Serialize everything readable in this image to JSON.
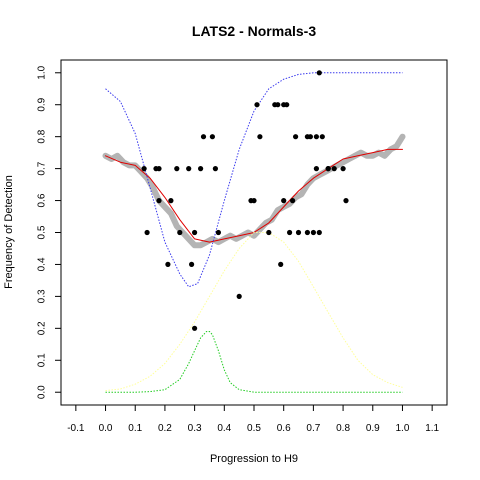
{
  "chart_data": {
    "type": "scatter",
    "title": "LATS2 - Normals-3",
    "xlabel": "Progression to H9",
    "ylabel": "Frequency of Detection",
    "xlim": [
      -0.15,
      1.15
    ],
    "ylim": [
      -0.04,
      1.04
    ],
    "x_ticks": [
      -0.1,
      0.0,
      0.1,
      0.2,
      0.3,
      0.4,
      0.5,
      0.6,
      0.7,
      0.8,
      0.9,
      1.0,
      1.1
    ],
    "x_tick_labels": [
      "-0.1",
      "0.0",
      "0.1",
      "0.2",
      "0.3",
      "0.4",
      "0.5",
      "0.6",
      "0.7",
      "0.8",
      "0.9",
      "1.0",
      "1.1"
    ],
    "y_ticks": [
      0.0,
      0.1,
      0.2,
      0.3,
      0.4,
      0.5,
      0.6,
      0.7,
      0.8,
      0.9,
      1.0
    ],
    "y_tick_labels": [
      "0.0",
      "0.1",
      "0.2",
      "0.3",
      "0.4",
      "0.5",
      "0.6",
      "0.7",
      "0.8",
      "0.9",
      "1.0"
    ],
    "grid": false,
    "points": {
      "color": "#000000",
      "x": [
        0.13,
        0.14,
        0.17,
        0.18,
        0.18,
        0.21,
        0.22,
        0.24,
        0.25,
        0.28,
        0.29,
        0.3,
        0.3,
        0.32,
        0.33,
        0.36,
        0.37,
        0.38,
        0.45,
        0.49,
        0.5,
        0.51,
        0.52,
        0.55,
        0.57,
        0.58,
        0.59,
        0.6,
        0.6,
        0.61,
        0.62,
        0.63,
        0.64,
        0.65,
        0.68,
        0.68,
        0.69,
        0.7,
        0.71,
        0.71,
        0.72,
        0.72,
        0.73,
        0.75,
        0.75,
        0.77,
        0.8,
        0.81
      ],
      "y": [
        0.7,
        0.5,
        0.7,
        0.7,
        0.6,
        0.4,
        0.6,
        0.7,
        0.5,
        0.7,
        0.4,
        0.2,
        0.5,
        0.7,
        0.8,
        0.8,
        0.7,
        0.5,
        0.3,
        0.6,
        0.6,
        0.9,
        0.8,
        0.5,
        0.9,
        0.9,
        0.4,
        0.6,
        0.9,
        0.9,
        0.5,
        0.6,
        0.8,
        0.5,
        0.8,
        0.5,
        0.8,
        0.5,
        0.8,
        0.7,
        1.0,
        0.5,
        0.8,
        0.7,
        0.7,
        0.7,
        0.7,
        0.6
      ]
    },
    "series": [
      {
        "style": "thick-gray",
        "color": "#b4b4b4",
        "x": [
          0.0,
          0.02,
          0.04,
          0.06,
          0.08,
          0.1,
          0.12,
          0.14,
          0.16,
          0.18,
          0.2,
          0.22,
          0.24,
          0.26,
          0.28,
          0.3,
          0.32,
          0.34,
          0.36,
          0.38,
          0.4,
          0.42,
          0.44,
          0.46,
          0.48,
          0.5,
          0.52,
          0.54,
          0.56,
          0.58,
          0.6,
          0.62,
          0.64,
          0.66,
          0.68,
          0.7,
          0.72,
          0.74,
          0.76,
          0.78,
          0.8,
          0.82,
          0.84,
          0.86,
          0.88,
          0.9,
          0.92,
          0.94,
          0.96,
          0.98,
          1.0
        ],
        "y": [
          0.74,
          0.73,
          0.74,
          0.72,
          0.71,
          0.71,
          0.69,
          0.67,
          0.64,
          0.6,
          0.58,
          0.56,
          0.52,
          0.5,
          0.48,
          0.46,
          0.46,
          0.47,
          0.48,
          0.47,
          0.48,
          0.49,
          0.48,
          0.49,
          0.5,
          0.49,
          0.51,
          0.53,
          0.54,
          0.57,
          0.58,
          0.59,
          0.61,
          0.62,
          0.65,
          0.67,
          0.68,
          0.69,
          0.7,
          0.71,
          0.72,
          0.73,
          0.74,
          0.75,
          0.74,
          0.74,
          0.75,
          0.74,
          0.76,
          0.77,
          0.8
        ]
      },
      {
        "style": "solid",
        "color": "#e00000",
        "x": [
          0.0,
          0.05,
          0.1,
          0.15,
          0.2,
          0.25,
          0.3,
          0.35,
          0.4,
          0.45,
          0.5,
          0.55,
          0.6,
          0.65,
          0.7,
          0.75,
          0.8,
          0.85,
          0.9,
          0.95,
          1.0
        ],
        "y": [
          0.74,
          0.72,
          0.71,
          0.67,
          0.61,
          0.54,
          0.48,
          0.47,
          0.48,
          0.49,
          0.5,
          0.53,
          0.58,
          0.63,
          0.67,
          0.7,
          0.73,
          0.74,
          0.75,
          0.76,
          0.76
        ]
      },
      {
        "style": "dotted",
        "color": "#3a3aee",
        "x": [
          0.0,
          0.05,
          0.1,
          0.15,
          0.2,
          0.25,
          0.28,
          0.31,
          0.35,
          0.4,
          0.45,
          0.5,
          0.55,
          0.6,
          0.65,
          0.7,
          0.75,
          0.8,
          0.9,
          1.0
        ],
        "y": [
          0.95,
          0.91,
          0.81,
          0.64,
          0.47,
          0.37,
          0.33,
          0.34,
          0.43,
          0.6,
          0.76,
          0.88,
          0.95,
          0.98,
          0.995,
          1.0,
          1.0,
          1.0,
          1.0,
          1.0
        ]
      },
      {
        "style": "dotted",
        "color": "#ffff9a",
        "x": [
          0.0,
          0.05,
          0.1,
          0.15,
          0.2,
          0.25,
          0.3,
          0.35,
          0.4,
          0.45,
          0.5,
          0.55,
          0.6,
          0.65,
          0.7,
          0.75,
          0.8,
          0.85,
          0.9,
          0.95,
          1.0
        ],
        "y": [
          0.005,
          0.01,
          0.025,
          0.05,
          0.09,
          0.15,
          0.22,
          0.3,
          0.38,
          0.45,
          0.5,
          0.5,
          0.47,
          0.41,
          0.33,
          0.25,
          0.17,
          0.1,
          0.055,
          0.03,
          0.015
        ]
      },
      {
        "style": "dotted",
        "color": "#22cc22",
        "x": [
          0.0,
          0.1,
          0.15,
          0.2,
          0.25,
          0.28,
          0.3,
          0.32,
          0.34,
          0.35,
          0.36,
          0.38,
          0.4,
          0.42,
          0.45,
          0.5,
          0.6,
          0.8,
          1.0
        ],
        "y": [
          0.0,
          0.0,
          0.002,
          0.008,
          0.04,
          0.09,
          0.13,
          0.17,
          0.19,
          0.19,
          0.18,
          0.13,
          0.07,
          0.03,
          0.008,
          0.0,
          0.0,
          0.0,
          0.0
        ]
      }
    ]
  }
}
